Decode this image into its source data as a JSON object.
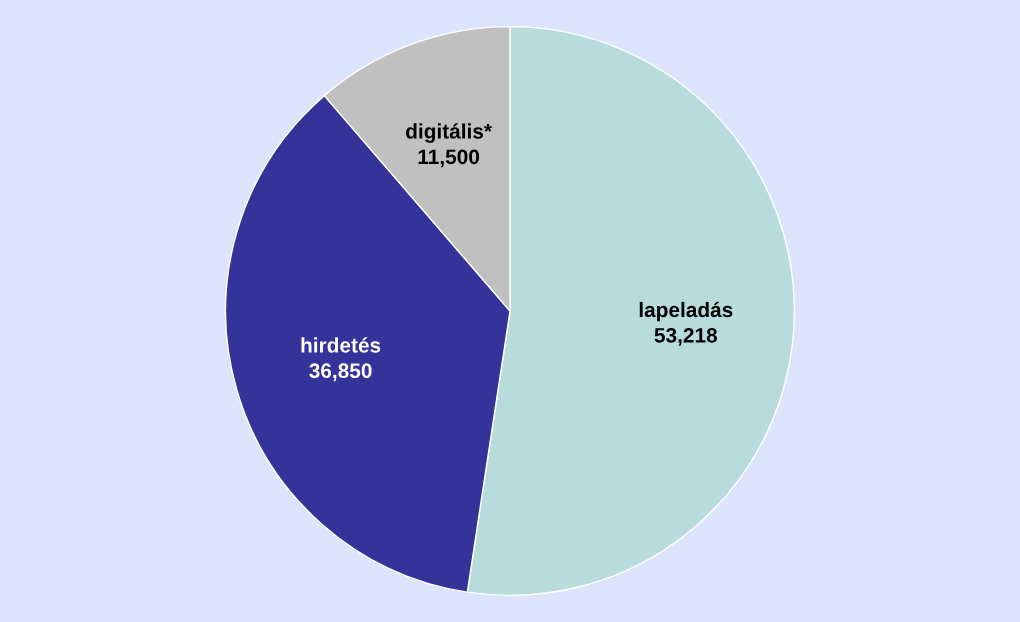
{
  "chart_data": {
    "type": "pie",
    "categories": [
      "lapeladás",
      "hirdetés",
      "digitális*"
    ],
    "values": [
      53218,
      36850,
      11500
    ],
    "value_labels": [
      "53,218",
      "36,850",
      "11,500"
    ],
    "colors": [
      "#b8dcdc",
      "#333399",
      "#c0c0c0"
    ],
    "legend": false
  }
}
